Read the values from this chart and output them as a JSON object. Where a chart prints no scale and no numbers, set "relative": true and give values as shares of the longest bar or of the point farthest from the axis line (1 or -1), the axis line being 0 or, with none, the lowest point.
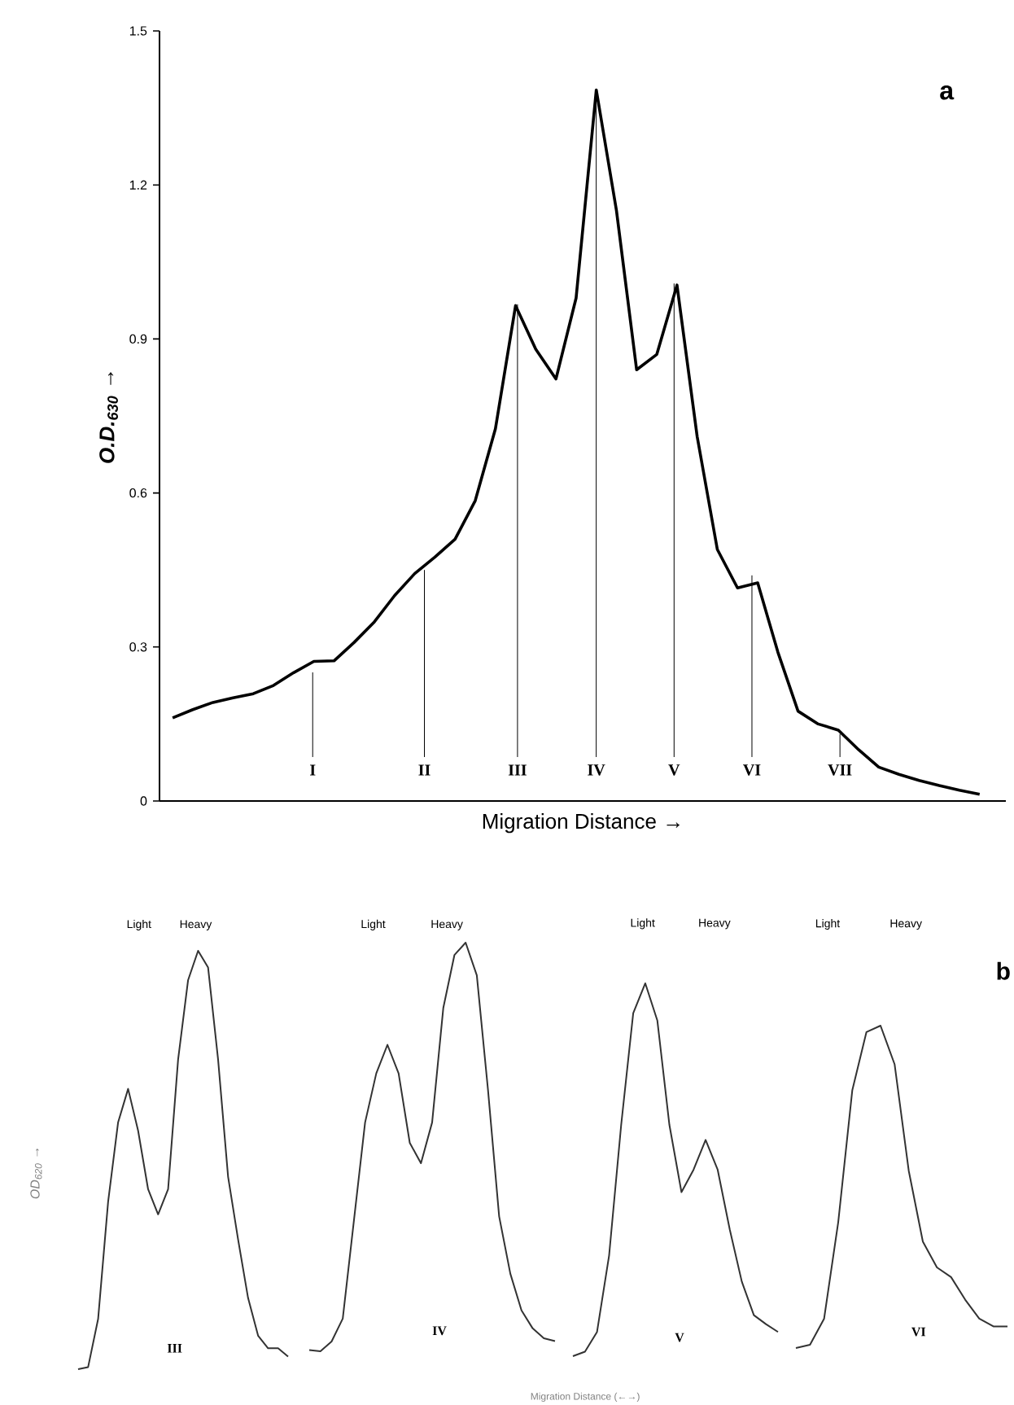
{
  "chart_data": [
    {
      "type": "line",
      "xlabel": "Migration Distance →",
      "ylabel": "O.D.$_{630}$ →",
      "color": "#000000",
      "ylim": [
        0,
        1.5
      ],
      "yticks": [
        0,
        0.3,
        0.6,
        0.9,
        1.2,
        1.5
      ],
      "categories": [
        null,
        null,
        null,
        null,
        null,
        null,
        null,
        null,
        null,
        null,
        null,
        null,
        null,
        null,
        null,
        null,
        null,
        null,
        null,
        null,
        null,
        null,
        null,
        null,
        null,
        null,
        null,
        null,
        null,
        null,
        null,
        null,
        null,
        null,
        null,
        null,
        null,
        null,
        null,
        null,
        null
      ],
      "values": [
        0.162,
        0.178,
        0.192,
        0.201,
        0.209,
        0.225,
        0.25,
        0.272,
        0.273,
        0.309,
        0.349,
        0.4,
        0.443,
        0.475,
        0.51,
        0.585,
        0.725,
        0.965,
        0.88,
        0.822,
        0.98,
        1.385,
        1.15,
        0.84,
        0.87,
        1.005,
        0.71,
        0.49,
        0.415,
        0.425,
        0.29,
        0.175,
        0.15,
        0.138,
        0.1,
        0.066,
        0.052,
        0.04,
        0.03,
        0.021,
        0.013
      ],
      "annotations": [
        "a",
        "I",
        "II",
        "III",
        "IV",
        "V",
        "VI",
        "VII"
      ]
    },
    {
      "type": "line",
      "relative": true,
      "ylabel": "OD$_{620}$ →",
      "color": "#333333",
      "categories": [
        null,
        null,
        null,
        null,
        null,
        null,
        null,
        null,
        null,
        null,
        null,
        null,
        null,
        null,
        null,
        null,
        null,
        null,
        null,
        null,
        null,
        null
      ],
      "values": [
        0,
        0.005,
        0.12,
        0.4,
        0.59,
        0.67,
        0.57,
        0.43,
        0.37,
        0.43,
        0.74,
        0.93,
        1,
        0.96,
        0.74,
        0.46,
        0.31,
        0.17,
        0.08,
        0.05,
        0.05,
        0.03
      ],
      "annotations": [
        "Light",
        "Heavy",
        "III"
      ]
    },
    {
      "type": "line",
      "relative": true,
      "color": "#333333",
      "categories": [
        null,
        null,
        null,
        null,
        null,
        null,
        null,
        null,
        null,
        null,
        null,
        null,
        null,
        null,
        null,
        null,
        null,
        null,
        null,
        null,
        null,
        null,
        null
      ],
      "values": [
        0.003,
        0,
        0.024,
        0.08,
        0.32,
        0.56,
        0.68,
        0.75,
        0.68,
        0.51,
        0.46,
        0.56,
        0.84,
        0.97,
        1,
        0.92,
        0.64,
        0.33,
        0.19,
        0.1,
        0.056,
        0.032,
        0.025
      ],
      "annotations": [
        "Light",
        "Heavy",
        "IV"
      ]
    },
    {
      "type": "line",
      "relative": true,
      "xlabel": "Migration Distance (←→)",
      "color": "#333333",
      "categories": [
        null,
        null,
        null,
        null,
        null,
        null,
        null,
        null,
        null,
        null,
        null,
        null,
        null,
        null,
        null,
        null,
        null,
        null
      ],
      "values": [
        0,
        0.012,
        0.065,
        0.27,
        0.62,
        0.92,
        1,
        0.9,
        0.62,
        0.44,
        0.5,
        0.58,
        0.5,
        0.34,
        0.2,
        0.11,
        0.086,
        0.065
      ],
      "annotations": [
        "Light",
        "Heavy",
        "V"
      ]
    },
    {
      "type": "line",
      "relative": true,
      "color": "#333333",
      "categories": [
        null,
        null,
        null,
        null,
        null,
        null,
        null,
        null,
        null,
        null,
        null,
        null,
        null,
        null,
        null,
        null
      ],
      "values": [
        0,
        0.01,
        0.091,
        0.39,
        0.8,
        0.98,
        1,
        0.88,
        0.55,
        0.33,
        0.25,
        0.22,
        0.15,
        0.091,
        0.067,
        0.067
      ],
      "annotations": [
        "Light",
        "Heavy",
        "VI",
        "b"
      ]
    }
  ]
}
